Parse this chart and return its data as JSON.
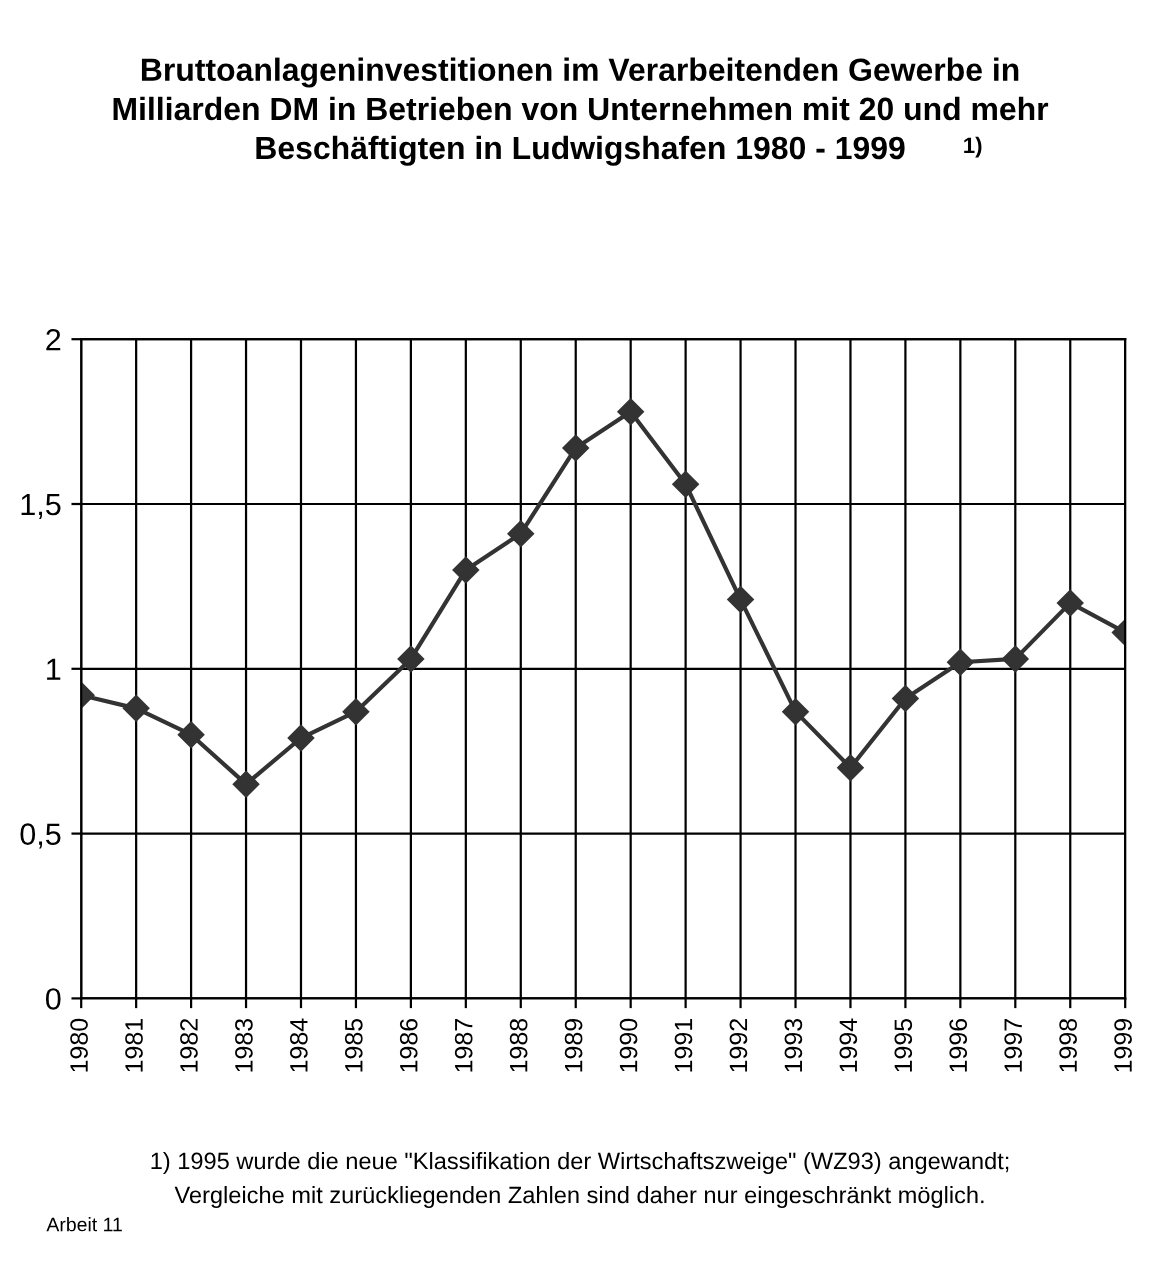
{
  "chart_data": {
    "type": "line",
    "title": "Bruttoanlageninvestitionen im Verarbeitenden Gewerbe in\nMilliarden DM in Betrieben von Unternehmen mit 20 und mehr\nBeschäftigten in Ludwigshafen 1980 - 1999",
    "categories": [
      "1980",
      "1981",
      "1982",
      "1983",
      "1984",
      "1985",
      "1986",
      "1987",
      "1988",
      "1989",
      "1990",
      "1991",
      "1992",
      "1993",
      "1994",
      "1995",
      "1996",
      "1997",
      "1998",
      "1999"
    ],
    "series": [
      {
        "color": "#333333",
        "values": [
          0.92,
          0.88,
          0.8,
          0.65,
          0.79,
          0.87,
          1.03,
          1.3,
          1.41,
          1.67,
          1.78,
          1.56,
          1.21,
          0.87,
          0.7,
          0.91,
          1.02,
          1.03,
          1.2,
          1.11
        ]
      }
    ],
    "ylim": [
      0,
      2
    ],
    "yticks": [
      0,
      {
        "value": 0.5,
        "label": "0,5"
      },
      1,
      {
        "value": 1.5,
        "label": "1,5"
      },
      2
    ],
    "grid": true,
    "marker": "diamond",
    "line_style": "solid",
    "legend": false,
    "annotations": [
      "1)",
      "1) 1995 wurde die neue \"Klassifikation der Wirtschaftszweige\" (WZ93) angewandt;\nVergleiche mit zurückliegenden Zahlen sind daher nur eingeschränkt möglich.",
      "Arbeit 11"
    ]
  }
}
